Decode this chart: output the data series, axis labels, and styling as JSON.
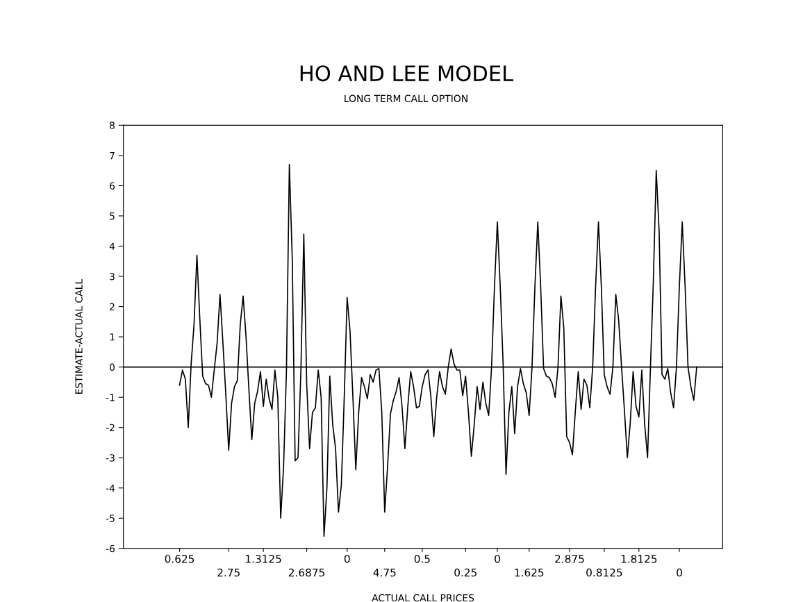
{
  "chart_data": {
    "type": "line",
    "title": "HO AND LEE MODEL",
    "subtitle": "LONG TERM CALL OPTION",
    "xlabel": "ACTUAL CALL PRICES",
    "ylabel": "ESTIMATE-ACTUAL CALL",
    "categories": [
      "0.625",
      null,
      null,
      null,
      null,
      null,
      null,
      null,
      null,
      null,
      null,
      null,
      null,
      null,
      null,
      null,
      null,
      "2.75",
      null,
      null,
      null,
      null,
      null,
      null,
      null,
      null,
      null,
      null,
      null,
      "1.3125",
      null,
      null,
      null,
      null,
      null,
      null,
      null,
      null,
      null,
      null,
      null,
      null,
      null,
      null,
      "2.6875",
      null,
      null,
      null,
      null,
      null,
      null,
      null,
      null,
      null,
      null,
      null,
      null,
      null,
      "0",
      null,
      null,
      null,
      null,
      null,
      null,
      null,
      null,
      null,
      null,
      null,
      null,
      "4.75",
      null,
      null,
      null,
      null,
      null,
      null,
      null,
      null,
      null,
      null,
      null,
      null,
      "0.5",
      null,
      null,
      null,
      null,
      null,
      null,
      null,
      null,
      null,
      null,
      null,
      null,
      null,
      null,
      "0.25",
      null,
      null,
      null,
      null,
      null,
      null,
      null,
      null,
      null,
      null,
      "0",
      null,
      null,
      null,
      null,
      null,
      null,
      null,
      null,
      null,
      null,
      "1.625",
      null,
      null,
      null,
      null,
      null,
      null,
      null,
      null,
      null,
      null,
      null,
      null,
      null,
      "2.875",
      null,
      null,
      null,
      null,
      null,
      null,
      null,
      null,
      null,
      null,
      null,
      "0.8125",
      null,
      null,
      null,
      null,
      null,
      null,
      null,
      null,
      null,
      null,
      null,
      "1.8125",
      null,
      null,
      null,
      null,
      null,
      null,
      null,
      null,
      null,
      null,
      null,
      null,
      null,
      "0",
      null,
      null,
      null,
      null,
      null,
      null
    ],
    "series": [
      {
        "color": "#000000",
        "values": [
          -0.6,
          -0.1,
          -0.4,
          -2.0,
          0.1,
          1.4,
          3.7,
          1.6,
          -0.3,
          -0.55,
          -0.6,
          -1.0,
          -0.1,
          0.8,
          2.4,
          0.8,
          -0.9,
          -2.75,
          -1.2,
          -0.65,
          -0.45,
          1.4,
          2.35,
          1.0,
          -0.75,
          -2.4,
          -1.2,
          -0.8,
          -0.15,
          -1.3,
          -0.4,
          -1.05,
          -1.4,
          -0.1,
          -1.0,
          -5.0,
          -3.3,
          -0.1,
          6.7,
          3.6,
          -3.1,
          -3.0,
          -0.1,
          4.4,
          -0.55,
          -2.7,
          -1.5,
          -1.35,
          -0.1,
          -1.0,
          -5.6,
          -4.0,
          -0.3,
          -1.9,
          -2.7,
          -4.8,
          -3.9,
          -1.0,
          2.3,
          1.2,
          -1.0,
          -3.4,
          -1.5,
          -0.35,
          -0.65,
          -1.05,
          -0.25,
          -0.5,
          -0.1,
          -0.05,
          -1.5,
          -4.8,
          -3.3,
          -1.55,
          -1.1,
          -0.8,
          -0.35,
          -1.3,
          -2.7,
          -1.3,
          -0.15,
          -0.65,
          -1.35,
          -1.3,
          -0.65,
          -0.25,
          -0.1,
          -1.0,
          -2.3,
          -1.0,
          -0.15,
          -0.65,
          -0.9,
          0.0,
          0.6,
          0.1,
          -0.1,
          -0.1,
          -0.95,
          -0.3,
          -1.5,
          -2.95,
          -1.9,
          -0.65,
          -1.4,
          -0.5,
          -1.2,
          -1.6,
          0.0,
          2.65,
          4.8,
          2.65,
          0.1,
          -3.55,
          -1.5,
          -0.65,
          -2.2,
          -0.65,
          -0.05,
          -0.55,
          -0.85,
          -1.6,
          0,
          2.65,
          4.8,
          2.65,
          -0.05,
          -0.3,
          -0.35,
          -0.55,
          -1.0,
          0,
          2.35,
          1.3,
          -2.3,
          -2.5,
          -2.9,
          -1.45,
          -0.15,
          -1.4,
          -0.4,
          -0.6,
          -1.35,
          0,
          2.65,
          4.8,
          2.65,
          -0.25,
          -0.65,
          -0.9,
          0,
          2.4,
          1.55,
          0,
          -1.45,
          -3.0,
          -1.85,
          -0.15,
          -1.3,
          -1.65,
          -0.1,
          -1.9,
          -3.0,
          0,
          2.85,
          6.5,
          4.5,
          -0.25,
          -0.4,
          -0.05,
          -0.85,
          -1.35,
          0,
          2.65,
          4.8,
          2.65,
          0,
          -0.65,
          -1.1,
          0
        ]
      }
    ],
    "ylim": [
      -6,
      8
    ],
    "yticks": [
      -6,
      -5,
      -4,
      -3,
      -2,
      -1,
      0,
      1,
      2,
      3,
      4,
      5,
      6,
      7,
      8
    ],
    "ref_lines": [
      {
        "axis": "y",
        "value": 0,
        "color": "#000000"
      }
    ],
    "grid": false
  }
}
